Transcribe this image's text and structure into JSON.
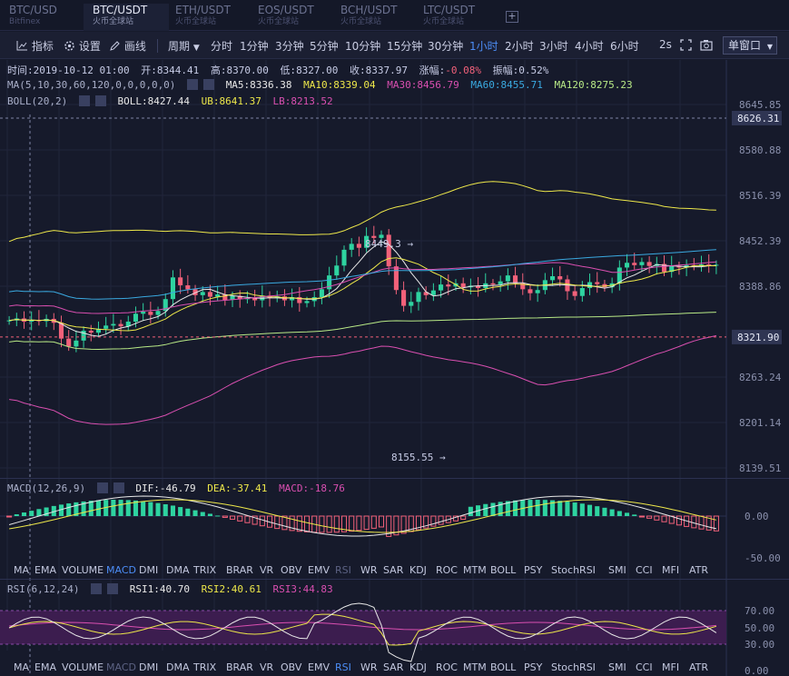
{
  "tabs": [
    {
      "pair": "BTC/USD",
      "exchange": "Bitfinex",
      "active": false
    },
    {
      "pair": "BTC/USDT",
      "exchange": "火币全球站",
      "active": true
    },
    {
      "pair": "ETH/USDT",
      "exchange": "火币全球站",
      "active": false
    },
    {
      "pair": "EOS/USDT",
      "exchange": "火币全球站",
      "active": false
    },
    {
      "pair": "BCH/USDT",
      "exchange": "火币全球站",
      "active": false
    },
    {
      "pair": "LTC/USDT",
      "exchange": "火币全球站",
      "active": false
    }
  ],
  "tab_add": "+",
  "toolbar": {
    "indicators": "指标",
    "settings": "设置",
    "draw": "画线",
    "period": "周期",
    "intervals": [
      "分时",
      "1分钟",
      "3分钟",
      "5分钟",
      "10分钟",
      "15分钟",
      "30分钟",
      "1小时",
      "2小时",
      "3小时",
      "4小时",
      "6小时"
    ],
    "active_interval": "1小时",
    "interval_2s": "2s",
    "window_mode": "单窗口"
  },
  "ohlc": {
    "time_label": "时间:",
    "time": "2019-10-12 01:00",
    "open_label": "开:",
    "open": "8344.41",
    "high_label": "高:",
    "high": "8370.00",
    "low_label": "低:",
    "low": "8327.00",
    "close_label": "收:",
    "close": "8337.97",
    "change_label": "涨幅:",
    "change": "-0.08%",
    "amp_label": "振幅:",
    "amp": "0.52%"
  },
  "ma": {
    "name": "MA(5,10,30,60,120,0,0,0,0,0)",
    "ma5": "MA5:8336.38",
    "ma10": "MA10:8339.04",
    "ma30": "MA30:8456.79",
    "ma60": "MA60:8455.71",
    "ma120": "MA120:8275.23"
  },
  "boll": {
    "name": "BOLL(20,2)",
    "boll": "BOLL:8427.44",
    "ub": "UB:8641.37",
    "lb": "LB:8213.52"
  },
  "macd": {
    "name": "MACD(12,26,9)",
    "dif": "DIF:-46.79",
    "dea": "DEA:-37.41",
    "macd": "MACD:-18.76",
    "axis": [
      "0.00",
      "-50.00"
    ]
  },
  "rsi": {
    "name": "RSI(6,12,24)",
    "rsi1": "RSI1:40.70",
    "rsi2": "RSI2:40.61",
    "rsi3": "RSI3:44.83",
    "axis": [
      "70.00",
      "50.00",
      "30.00",
      "0.00"
    ]
  },
  "price_axis": [
    "8645.85",
    "8580.88",
    "8516.39",
    "8452.39",
    "8388.86",
    "8263.24",
    "8201.14",
    "8139.51"
  ],
  "crosshair_price": "8626.31",
  "last_price": "8321.90",
  "annotations": {
    "high": "8449.3",
    "low": "8155.55"
  },
  "indicator_tabs": [
    "MA",
    "EMA",
    "VOLUME",
    "MACD",
    "DMI",
    "DMA",
    "TRIX",
    "BRAR",
    "VR",
    "OBV",
    "EMV",
    "RSI",
    "WR",
    "SAR",
    "KDJ",
    "ROC",
    "MTM",
    "BOLL",
    "PSY",
    "StochRSI",
    "SMI",
    "CCI",
    "MFI",
    "ATR"
  ],
  "colors": {
    "up": "#2ed3a0",
    "down": "#f2617a",
    "ma5": "#e8e8e8",
    "ma10": "#ede74a",
    "ma30": "#d94fb0",
    "ma60": "#3aa9e0",
    "ma120": "#b8e986",
    "accent": "#4c8df6"
  }
}
